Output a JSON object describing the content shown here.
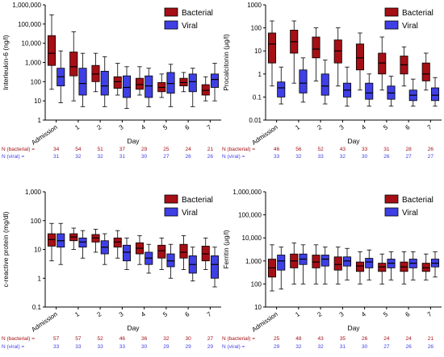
{
  "colors": {
    "bacterial": "#a50f15",
    "viral": "#3f3fe6",
    "axis": "#000000"
  },
  "n_labels": {
    "bacterial": "N (bacterial) =",
    "viral": "N (viral) ="
  },
  "chart_data": [
    {
      "type": "box",
      "ylabel": "Interleukin-6 (ng/l)",
      "xlabel": "Day",
      "yscale": "log",
      "ylim": [
        1,
        1000000
      ],
      "yticks": [
        "1",
        "10",
        "100",
        "1,000",
        "10,000",
        "100,000",
        "1,000,000"
      ],
      "categories": [
        "Admission",
        "1",
        "2",
        "3",
        "4",
        "5",
        "6",
        "7"
      ],
      "legend": {
        "position": "top-right",
        "entries": [
          "Bacterial",
          "Viral"
        ]
      },
      "series": [
        {
          "name": "Bacterial",
          "boxes": [
            {
              "min": 40,
              "q1": 700,
              "median": 3000,
              "q3": 25000,
              "max": 300000
            },
            {
              "min": 10,
              "q1": 200,
              "median": 600,
              "q3": 3500,
              "max": 40000
            },
            {
              "min": 30,
              "q1": 100,
              "median": 250,
              "q3": 700,
              "max": 3000
            },
            {
              "min": 20,
              "q1": 45,
              "median": 100,
              "q3": 180,
              "max": 900
            },
            {
              "min": 20,
              "q1": 40,
              "median": 70,
              "q3": 150,
              "max": 600
            },
            {
              "min": 15,
              "q1": 30,
              "median": 50,
              "q3": 90,
              "max": 250
            },
            {
              "min": 30,
              "q1": 60,
              "median": 90,
              "q3": 150,
              "max": 300
            },
            {
              "min": 10,
              "q1": 20,
              "median": 35,
              "q3": 70,
              "max": 180
            }
          ]
        },
        {
          "name": "Viral",
          "boxes": [
            {
              "min": 8,
              "q1": 60,
              "median": 180,
              "q3": 500,
              "max": 4000
            },
            {
              "min": 5,
              "q1": 20,
              "median": 80,
              "q3": 500,
              "max": 3000
            },
            {
              "min": 5,
              "q1": 20,
              "median": 60,
              "q3": 350,
              "max": 2000
            },
            {
              "min": 4,
              "q1": 15,
              "median": 50,
              "q3": 200,
              "max": 600
            },
            {
              "min": 5,
              "q1": 15,
              "median": 60,
              "q3": 200,
              "max": 500
            },
            {
              "min": 5,
              "q1": 25,
              "median": 80,
              "q3": 300,
              "max": 800
            },
            {
              "min": 5,
              "q1": 30,
              "median": 100,
              "q3": 250,
              "max": 500
            },
            {
              "min": 10,
              "q1": 50,
              "median": 130,
              "q3": 250,
              "max": 900
            }
          ]
        }
      ],
      "n": {
        "bacterial": [
          "34",
          "54",
          "51",
          "37",
          "29",
          "25",
          "24",
          "21"
        ],
        "viral": [
          "31",
          "32",
          "32",
          "31",
          "30",
          "27",
          "26",
          "26"
        ]
      }
    },
    {
      "type": "box",
      "ylabel": "Procalcitonin (μg/l)",
      "xlabel": "Day",
      "yscale": "log",
      "ylim": [
        0.01,
        1000
      ],
      "yticks": [
        "0.01",
        "0.1",
        "1",
        "10",
        "100",
        "1000"
      ],
      "categories": [
        "Admission",
        "1",
        "2",
        "3",
        "4",
        "5",
        "6",
        "7"
      ],
      "legend": {
        "position": "top-right",
        "entries": [
          "Bacterial",
          "Viral"
        ]
      },
      "series": [
        {
          "name": "Bacterial",
          "boxes": [
            {
              "min": 0.3,
              "q1": 3,
              "median": 20,
              "q3": 60,
              "max": 200
            },
            {
              "min": 0.4,
              "q1": 8,
              "median": 25,
              "q3": 80,
              "max": 200
            },
            {
              "min": 0.5,
              "q1": 5,
              "median": 12,
              "q3": 40,
              "max": 100
            },
            {
              "min": 0.3,
              "q1": 3,
              "median": 10,
              "q3": 30,
              "max": 100
            },
            {
              "min": 0.2,
              "q1": 1.5,
              "median": 5,
              "q3": 20,
              "max": 60
            },
            {
              "min": 0.2,
              "q1": 1,
              "median": 3,
              "q3": 8,
              "max": 40
            },
            {
              "min": 0.3,
              "q1": 1,
              "median": 2.5,
              "q3": 6,
              "max": 15
            },
            {
              "min": 0.2,
              "q1": 0.5,
              "median": 1,
              "q3": 3,
              "max": 8
            }
          ]
        },
        {
          "name": "Viral",
          "boxes": [
            {
              "min": 0.05,
              "q1": 0.1,
              "median": 0.25,
              "q3": 0.45,
              "max": 2
            },
            {
              "min": 0.06,
              "q1": 0.15,
              "median": 0.4,
              "q3": 1.5,
              "max": 5
            },
            {
              "min": 0.05,
              "q1": 0.12,
              "median": 0.3,
              "q3": 1,
              "max": 4
            },
            {
              "min": 0.04,
              "q1": 0.1,
              "median": 0.2,
              "q3": 0.4,
              "max": 2
            },
            {
              "min": 0.04,
              "q1": 0.08,
              "median": 0.15,
              "q3": 0.4,
              "max": 1
            },
            {
              "min": 0.04,
              "q1": 0.08,
              "median": 0.15,
              "q3": 0.3,
              "max": 0.8
            },
            {
              "min": 0.04,
              "q1": 0.07,
              "median": 0.12,
              "q3": 0.2,
              "max": 0.6
            },
            {
              "min": 0.04,
              "q1": 0.07,
              "median": 0.12,
              "q3": 0.25,
              "max": 0.7
            }
          ]
        }
      ],
      "n": {
        "bacterial": [
          "46",
          "56",
          "52",
          "43",
          "33",
          "31",
          "28",
          "26"
        ],
        "viral": [
          "33",
          "32",
          "33",
          "32",
          "30",
          "26",
          "27",
          "27"
        ]
      }
    },
    {
      "type": "box",
      "ylabel": "c-reactive protein (mg/dl)",
      "xlabel": "Day",
      "yscale": "log",
      "ylim": [
        0.1,
        1000
      ],
      "yticks": [
        "0.1",
        "1",
        "10",
        "100",
        "1,000"
      ],
      "categories": [
        "Admission",
        "1",
        "2",
        "3",
        "4",
        "5",
        "6",
        "7"
      ],
      "legend": {
        "position": "top-right",
        "entries": [
          "Bacterial",
          "Viral"
        ]
      },
      "series": [
        {
          "name": "Bacterial",
          "boxes": [
            {
              "min": 4,
              "q1": 13,
              "median": 22,
              "q3": 35,
              "max": 80
            },
            {
              "min": 10,
              "q1": 20,
              "median": 27,
              "q3": 35,
              "max": 55
            },
            {
              "min": 8,
              "q1": 18,
              "median": 25,
              "q3": 33,
              "max": 50
            },
            {
              "min": 5,
              "q1": 12,
              "median": 18,
              "q3": 25,
              "max": 45
            },
            {
              "min": 3,
              "q1": 7,
              "median": 11,
              "q3": 17,
              "max": 30
            },
            {
              "min": 2,
              "q1": 5,
              "median": 9,
              "q3": 14,
              "max": 25
            },
            {
              "min": 2,
              "q1": 5,
              "median": 8,
              "q3": 15,
              "max": 30
            },
            {
              "min": 2,
              "q1": 4,
              "median": 7,
              "q3": 13,
              "max": 25
            }
          ]
        },
        {
          "name": "Viral",
          "boxes": [
            {
              "min": 3,
              "q1": 12,
              "median": 20,
              "q3": 35,
              "max": 80
            },
            {
              "min": 5,
              "q1": 12,
              "median": 18,
              "q3": 25,
              "max": 45
            },
            {
              "min": 3,
              "q1": 7,
              "median": 12,
              "q3": 20,
              "max": 35
            },
            {
              "min": 2,
              "q1": 4,
              "median": 8,
              "q3": 14,
              "max": 25
            },
            {
              "min": 1.5,
              "q1": 3,
              "median": 5,
              "q3": 8,
              "max": 15
            },
            {
              "min": 1,
              "q1": 2.5,
              "median": 4,
              "q3": 7,
              "max": 15
            },
            {
              "min": 0.8,
              "q1": 1.5,
              "median": 3,
              "q3": 6,
              "max": 12
            },
            {
              "min": 0.5,
              "q1": 1,
              "median": 3,
              "q3": 6,
              "max": 12
            }
          ]
        }
      ],
      "n": {
        "bacterial": [
          "57",
          "57",
          "52",
          "46",
          "36",
          "32",
          "30",
          "27"
        ],
        "viral": [
          "33",
          "33",
          "33",
          "33",
          "30",
          "29",
          "29",
          "29"
        ]
      }
    },
    {
      "type": "box",
      "ylabel": "Ferritin (μg/l)",
      "xlabel": "Day",
      "yscale": "log",
      "ylim": [
        10,
        1000000
      ],
      "yticks": [
        "10",
        "100",
        "1,000",
        "10,000",
        "100,000",
        "1,000,000"
      ],
      "categories": [
        "Admission",
        "1",
        "2",
        "3",
        "4",
        "5",
        "6",
        "7"
      ],
      "legend": {
        "position": "top-right",
        "entries": [
          "Bacterial",
          "Viral"
        ]
      },
      "series": [
        {
          "name": "Bacterial",
          "boxes": [
            {
              "min": 50,
              "q1": 200,
              "median": 500,
              "q3": 1200,
              "max": 5000
            },
            {
              "min": 100,
              "q1": 500,
              "median": 1000,
              "q3": 2000,
              "max": 6000
            },
            {
              "min": 100,
              "q1": 500,
              "median": 900,
              "q3": 1800,
              "max": 5000
            },
            {
              "min": 100,
              "q1": 400,
              "median": 700,
              "q3": 1500,
              "max": 4000
            },
            {
              "min": 100,
              "q1": 350,
              "median": 600,
              "q3": 900,
              "max": 2500
            },
            {
              "min": 100,
              "q1": 350,
              "median": 550,
              "q3": 800,
              "max": 2000
            },
            {
              "min": 100,
              "q1": 350,
              "median": 550,
              "q3": 900,
              "max": 2500
            },
            {
              "min": 150,
              "q1": 350,
              "median": 500,
              "q3": 800,
              "max": 2000
            }
          ]
        },
        {
          "name": "Viral",
          "boxes": [
            {
              "min": 60,
              "q1": 400,
              "median": 1000,
              "q3": 1800,
              "max": 4000
            },
            {
              "min": 100,
              "q1": 700,
              "median": 1200,
              "q3": 2000,
              "max": 5000
            },
            {
              "min": 100,
              "q1": 600,
              "median": 1200,
              "q3": 1800,
              "max": 4000
            },
            {
              "min": 150,
              "q1": 600,
              "median": 1000,
              "q3": 1500,
              "max": 3500
            },
            {
              "min": 150,
              "q1": 500,
              "median": 900,
              "q3": 1300,
              "max": 3000
            },
            {
              "min": 150,
              "q1": 500,
              "median": 800,
              "q3": 1200,
              "max": 2500
            },
            {
              "min": 150,
              "q1": 500,
              "median": 800,
              "q3": 1200,
              "max": 2500
            },
            {
              "min": 200,
              "q1": 550,
              "median": 800,
              "q3": 1200,
              "max": 2500
            }
          ]
        }
      ],
      "n": {
        "bacterial": [
          "25",
          "48",
          "43",
          "35",
          "26",
          "24",
          "24",
          "21"
        ],
        "viral": [
          "29",
          "32",
          "32",
          "31",
          "30",
          "27",
          "26",
          "26"
        ]
      }
    }
  ]
}
